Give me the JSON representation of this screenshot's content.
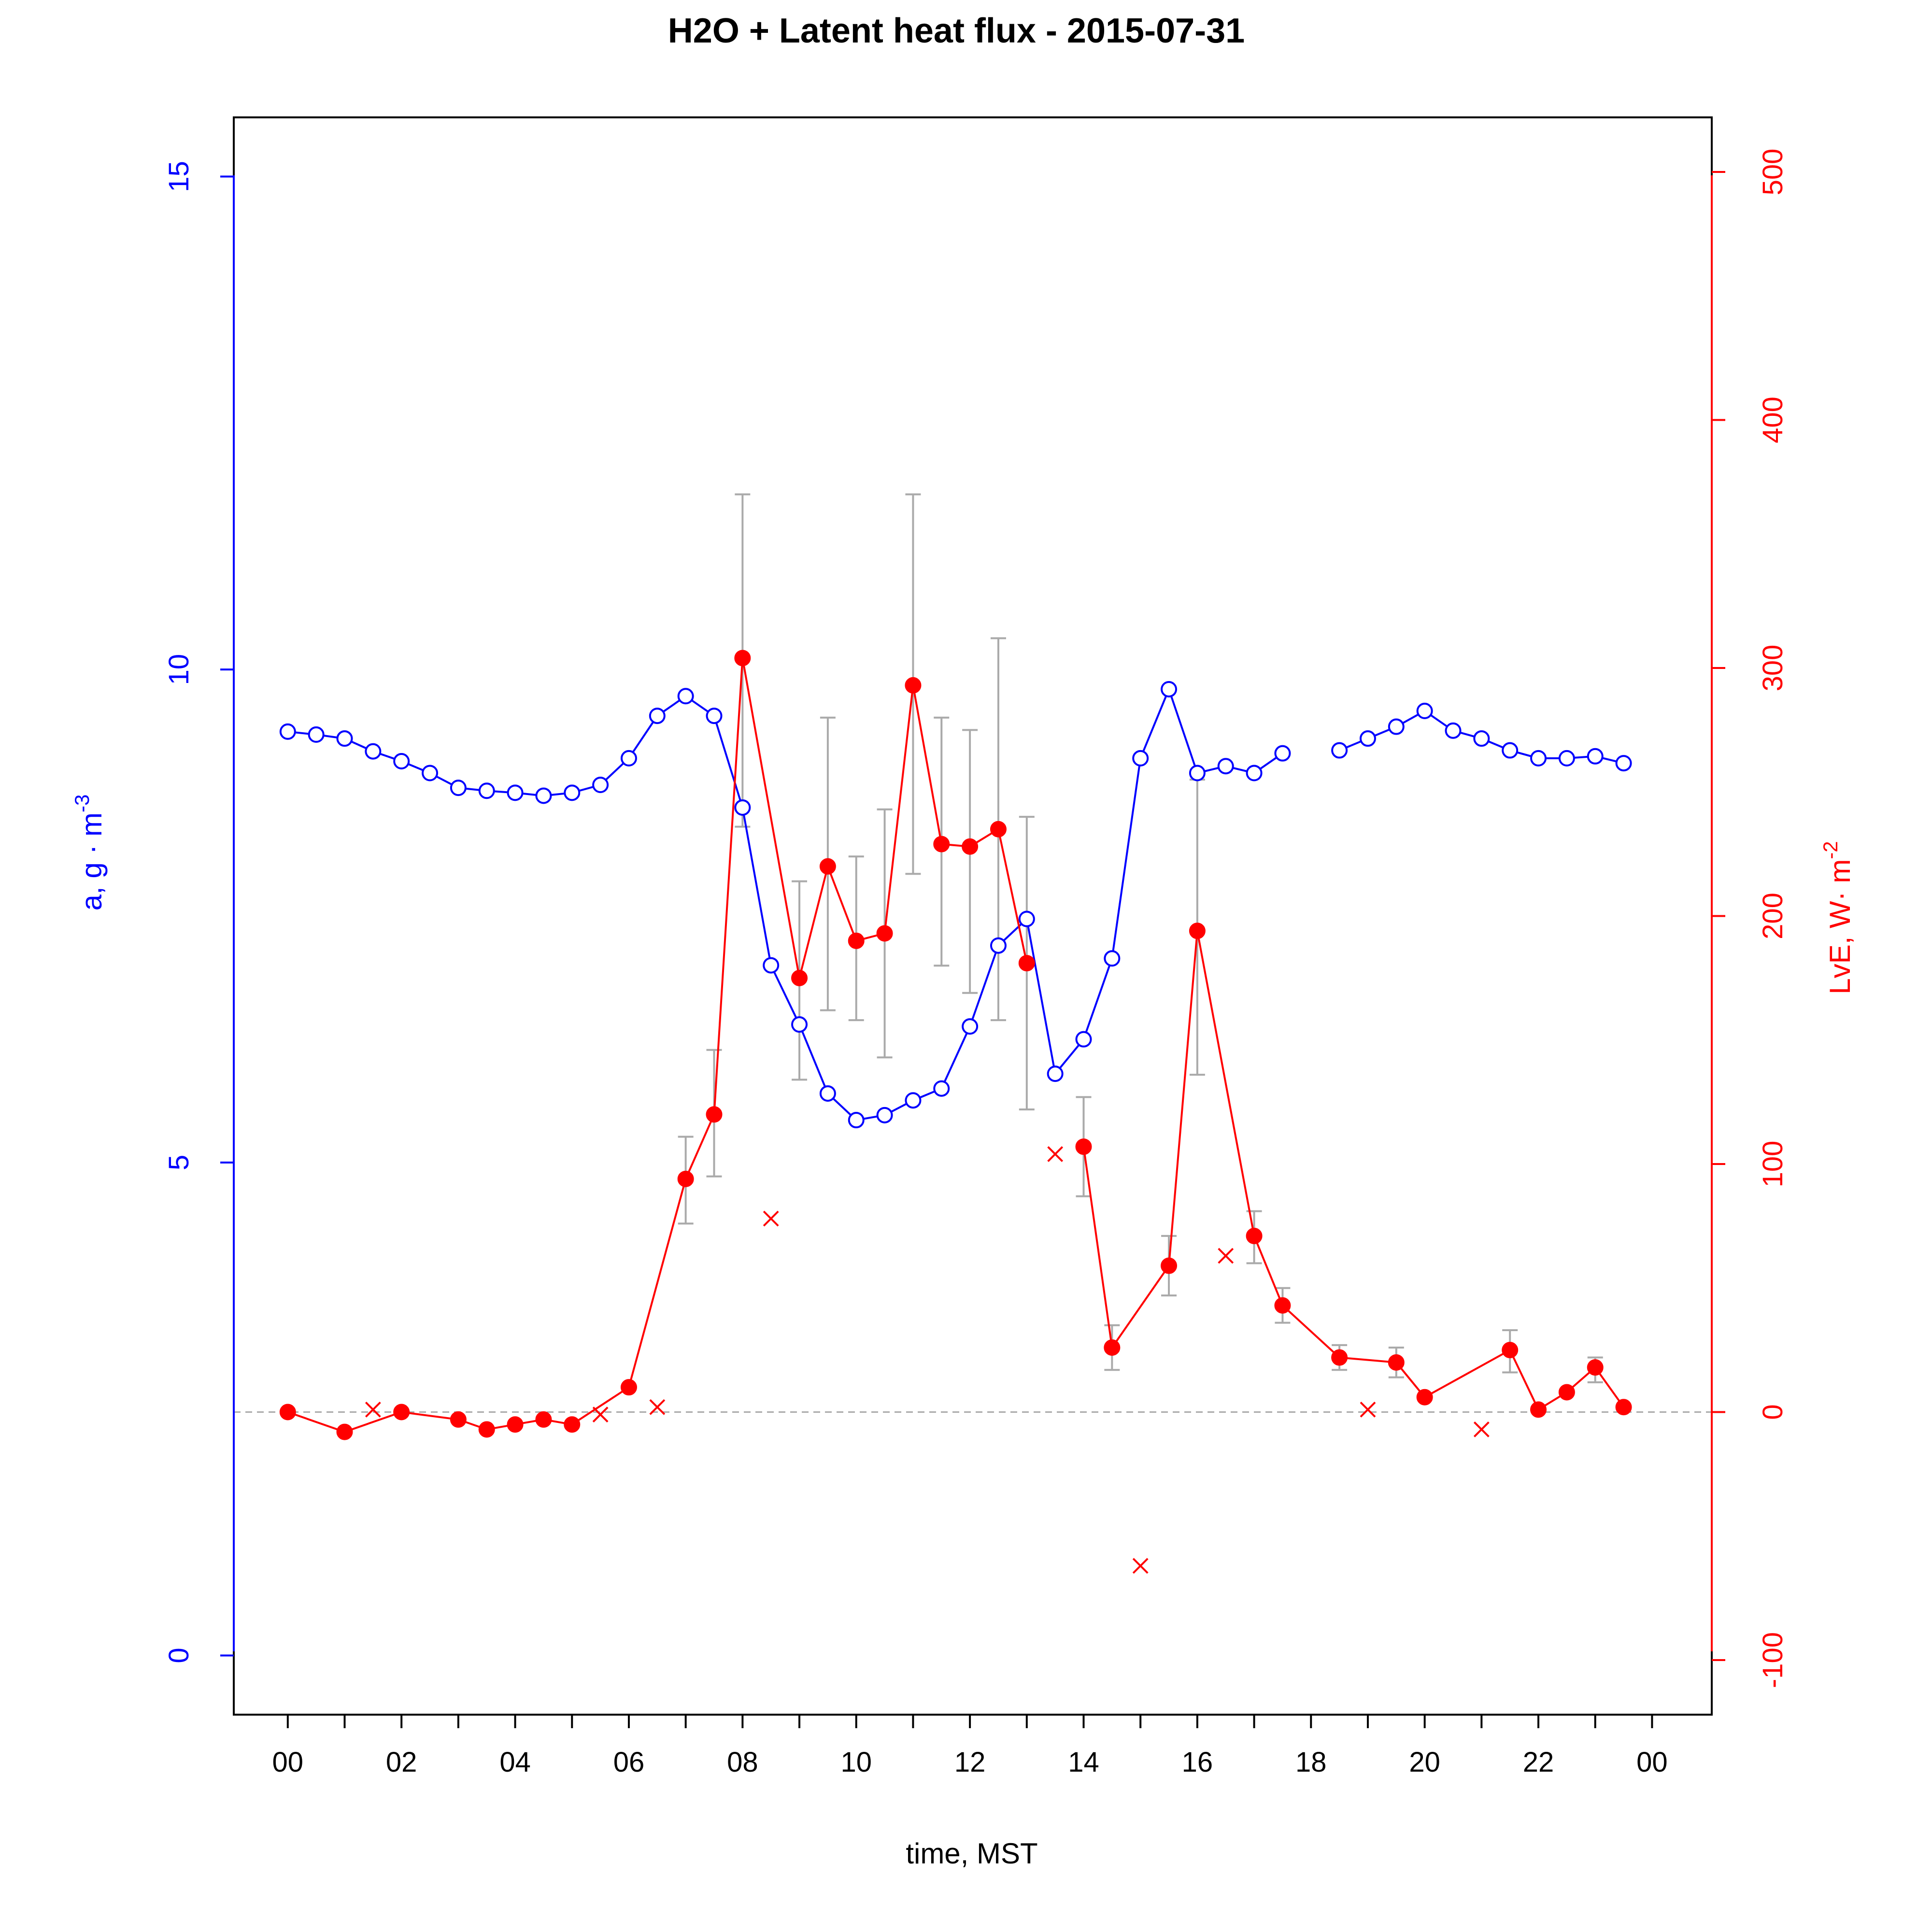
{
  "chart_data": {
    "type": "line",
    "title": "H2O + Latent heat flux -  2015-07-31",
    "xlabel": "time, MST",
    "ylabel_left": "a, g · m",
    "ylabel_left_sup": "-3",
    "ylabel_right": "LvE, W· m",
    "ylabel_right_sup": "-2",
    "x_range_hours": [
      -0.95,
      25.05
    ],
    "x_ticks_hours": [
      0,
      1,
      2,
      3,
      4,
      5,
      6,
      7,
      8,
      9,
      10,
      11,
      12,
      13,
      14,
      15,
      16,
      17,
      18,
      19,
      20,
      21,
      22,
      23,
      24
    ],
    "x_tick_labels": [
      "00",
      "02",
      "04",
      "06",
      "08",
      "10",
      "12",
      "14",
      "16",
      "18",
      "20",
      "22",
      "00"
    ],
    "left_axis": {
      "ylim": [
        -0.6,
        15.6
      ],
      "ticks": [
        0,
        5,
        10,
        15
      ],
      "color": "#0000ff"
    },
    "right_axis": {
      "ylim": [
        -122,
        522
      ],
      "ticks": [
        -100,
        0,
        100,
        200,
        300,
        400,
        500
      ],
      "color": "#ff0000"
    },
    "reference_line": {
      "axis": "right",
      "value": 0,
      "style": "dashed",
      "color": "#aaaaaa"
    },
    "series": [
      {
        "axis": "left",
        "color": "#0000ff",
        "marker": "open-circle",
        "points": [
          [
            0,
            9.37
          ],
          [
            0.5,
            9.34
          ],
          [
            1,
            9.3
          ],
          [
            1.5,
            9.17
          ],
          [
            2,
            9.07
          ],
          [
            2.5,
            8.95
          ],
          [
            3,
            8.8
          ],
          [
            3.5,
            8.77
          ],
          [
            4,
            8.75
          ],
          [
            4.5,
            8.72
          ],
          [
            5,
            8.75
          ],
          [
            5.5,
            8.83
          ],
          [
            6,
            9.1
          ],
          [
            6.5,
            9.53
          ],
          [
            7,
            9.73
          ],
          [
            7.5,
            9.53
          ],
          [
            8,
            8.6
          ],
          [
            8.5,
            7.0
          ],
          [
            9,
            6.4
          ],
          [
            9.5,
            5.7
          ],
          [
            10,
            5.43
          ],
          [
            10.5,
            5.48
          ],
          [
            11,
            5.63
          ],
          [
            11.5,
            5.75
          ],
          [
            12,
            6.38
          ],
          [
            12.5,
            7.2
          ],
          [
            13,
            7.47
          ],
          [
            13.5,
            5.9
          ],
          [
            14,
            6.25
          ],
          [
            14.5,
            7.07
          ],
          [
            15,
            9.1
          ],
          [
            15.5,
            9.8
          ],
          [
            16,
            8.95
          ],
          [
            16.5,
            9.02
          ],
          [
            17,
            8.95
          ],
          [
            17.5,
            9.15
          ],
          null,
          [
            18.5,
            9.18
          ],
          [
            19,
            9.3
          ],
          [
            19.5,
            9.42
          ],
          [
            20,
            9.58
          ],
          [
            20.5,
            9.38
          ],
          [
            21,
            9.3
          ],
          [
            21.5,
            9.18
          ],
          [
            22,
            9.1
          ],
          [
            22.5,
            9.1
          ],
          [
            23,
            9.12
          ],
          [
            23.5,
            9.05
          ]
        ]
      },
      {
        "axis": "right",
        "color": "#ff0000",
        "marker": "filled-circle",
        "points": [
          [
            0,
            0
          ],
          [
            1,
            -8
          ],
          [
            2,
            0
          ],
          [
            3,
            -3
          ],
          [
            3.5,
            -7
          ],
          [
            4,
            -5
          ],
          [
            4.5,
            -3
          ],
          [
            5,
            -5
          ],
          [
            6,
            10
          ],
          [
            7,
            94
          ],
          [
            7.5,
            120
          ],
          [
            8,
            304
          ],
          [
            9,
            175
          ],
          [
            9.5,
            220
          ],
          [
            10,
            190
          ],
          [
            10.5,
            193
          ],
          [
            11,
            293
          ],
          [
            11.5,
            229
          ],
          [
            12,
            228
          ],
          [
            12.5,
            235
          ],
          [
            13,
            181
          ],
          null,
          [
            14,
            107
          ],
          [
            14.5,
            26
          ],
          [
            15.5,
            59
          ],
          [
            16,
            194
          ],
          [
            17,
            71
          ],
          [
            17.5,
            43
          ],
          [
            18.5,
            22
          ],
          [
            19.5,
            20
          ],
          [
            20,
            6
          ],
          [
            21.5,
            25
          ],
          [
            22,
            1
          ],
          [
            22.5,
            8
          ],
          [
            23,
            18
          ],
          [
            23.5,
            2
          ]
        ]
      },
      {
        "axis": "right",
        "color": "#ff0000",
        "marker": "cross",
        "points": [
          [
            1.5,
            1
          ],
          [
            5.5,
            -1
          ],
          [
            6.5,
            2
          ],
          [
            8.5,
            78
          ],
          [
            13.5,
            104
          ],
          [
            15,
            -62
          ],
          [
            16.5,
            63
          ],
          [
            19,
            1
          ],
          [
            21,
            -7
          ]
        ]
      }
    ],
    "error_bars": {
      "axis": "right",
      "color": "#aaaaaa",
      "bars": [
        [
          7,
          76,
          111
        ],
        [
          7.5,
          95,
          146
        ],
        [
          8,
          236,
          370
        ],
        [
          9,
          134,
          214
        ],
        [
          9.5,
          162,
          280
        ],
        [
          10,
          158,
          224
        ],
        [
          10.5,
          143,
          243
        ],
        [
          11,
          217,
          370
        ],
        [
          11.5,
          180,
          280
        ],
        [
          12,
          169,
          275
        ],
        [
          12.5,
          158,
          312
        ],
        [
          13,
          122,
          240
        ],
        [
          14,
          87,
          127
        ],
        [
          14.5,
          17,
          35
        ],
        [
          15.5,
          47,
          71
        ],
        [
          16,
          136,
          255
        ],
        [
          17,
          60,
          81
        ],
        [
          17.5,
          36,
          50
        ],
        [
          18.5,
          17,
          27
        ],
        [
          19.5,
          14,
          26
        ],
        [
          21.5,
          16,
          33
        ],
        [
          23,
          12,
          22
        ]
      ]
    }
  }
}
